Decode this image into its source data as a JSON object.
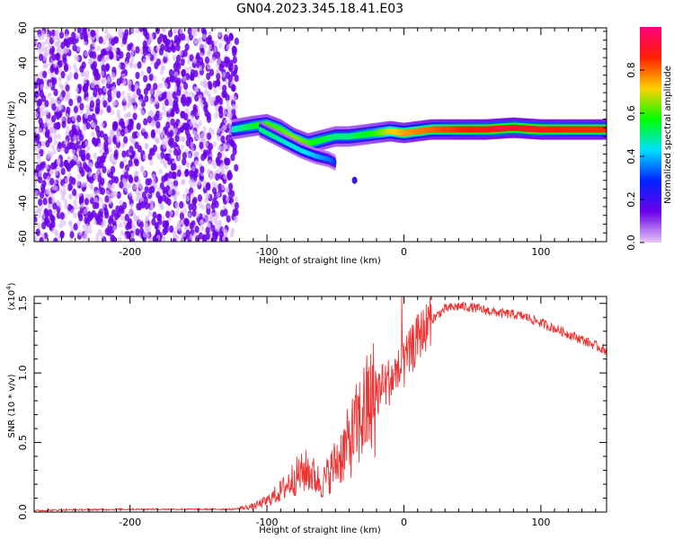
{
  "title": "GN04.2023.345.18.41.E03",
  "chart_data": [
    {
      "type": "heatmap",
      "xlabel": "Height of straight line (km)",
      "ylabel": "Frequency (Hz)",
      "xlim": [
        -270,
        148
      ],
      "ylim": [
        -62,
        60
      ],
      "x_ticks": [
        -200,
        -100,
        0,
        100
      ],
      "y_ticks": [
        -60,
        -40,
        -20,
        0,
        20,
        40,
        60
      ],
      "colorbar": {
        "label": "Normalized spectral amplitude",
        "range": [
          0,
          1
        ],
        "ticks": [
          0.0,
          0.2,
          0.4,
          0.6,
          0.8
        ],
        "colors": [
          "#e6c8f5",
          "#6a00e8",
          "#0022ff",
          "#00e0ff",
          "#00ff00",
          "#ffd000",
          "#ff2000",
          "#ff0080"
        ]
      },
      "noise_region": {
        "x": [
          -270,
          -122
        ],
        "y": [
          -62,
          60
        ],
        "amplitude": 0.1
      },
      "ridge": {
        "x": [
          -125,
          -110,
          -100,
          -90,
          -80,
          -70,
          -60,
          -50,
          -40,
          -30,
          -20,
          -10,
          0,
          20,
          40,
          60,
          80,
          100,
          120,
          148
        ],
        "y": [
          2,
          4,
          5,
          2,
          -3,
          -6,
          -4,
          -2,
          -2,
          -1,
          0,
          1,
          0,
          2,
          2,
          2,
          3,
          2,
          2,
          2
        ],
        "amplitude": [
          0.45,
          0.55,
          0.6,
          0.6,
          0.65,
          0.6,
          0.55,
          0.5,
          0.5,
          0.55,
          0.6,
          0.7,
          0.75,
          0.8,
          0.85,
          0.88,
          0.9,
          0.88,
          0.85,
          0.85
        ]
      },
      "branch": {
        "x": [
          -105,
          -95,
          -85,
          -75,
          -65,
          -55,
          -50
        ],
        "y": [
          2,
          -2,
          -6,
          -10,
          -13,
          -15,
          -17
        ],
        "amplitude": [
          0.5,
          0.5,
          0.45,
          0.45,
          0.4,
          0.35,
          0.3
        ]
      },
      "outlier": {
        "x": -36,
        "y": -27,
        "amplitude": 0.2
      }
    },
    {
      "type": "line",
      "xlabel": "Height of straight line (km)",
      "ylabel": "SNR (10 * v/v)",
      "y_multiplier": "(x10",
      "y_multiplier_exp": "4",
      "xlim": [
        -270,
        148
      ],
      "ylim": [
        0,
        1.55
      ],
      "x_ticks": [
        -200,
        -100,
        0,
        100
      ],
      "y_ticks": [
        0.0,
        0.5,
        1.0,
        1.5
      ],
      "color": "#ee3333",
      "series": [
        {
          "x": [
            -270,
            -250,
            -200,
            -150,
            -125,
            -110,
            -100,
            -90,
            -80,
            -70,
            -60,
            -50,
            -40,
            -30,
            -20,
            -10,
            0,
            10,
            20,
            30,
            40,
            50,
            60,
            70,
            80,
            90,
            100,
            110,
            120,
            130,
            148
          ],
          "y": [
            0.01,
            0.015,
            0.02,
            0.02,
            0.02,
            0.04,
            0.08,
            0.15,
            0.25,
            0.3,
            0.2,
            0.35,
            0.5,
            0.7,
            0.85,
            0.95,
            1.05,
            1.25,
            1.38,
            1.46,
            1.48,
            1.47,
            1.45,
            1.43,
            1.42,
            1.4,
            1.36,
            1.32,
            1.28,
            1.24,
            1.16
          ]
        }
      ]
    }
  ]
}
